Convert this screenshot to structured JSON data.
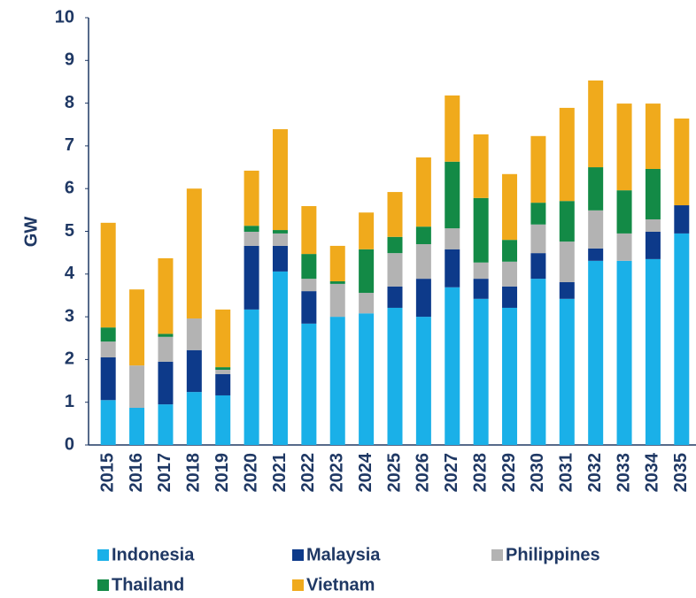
{
  "chart_data": {
    "type": "stacked_bar",
    "y_label": "GW",
    "categories": [
      "2015",
      "2016",
      "2017",
      "2018",
      "2019",
      "2020",
      "2021",
      "2022",
      "2023",
      "2024",
      "2025",
      "2026",
      "2027",
      "2028",
      "2029",
      "2030",
      "2031",
      "2032",
      "2033",
      "2034",
      "2035"
    ],
    "series": [
      {
        "name": "Indonesia",
        "color": "#1ab0e8",
        "values": [
          1.05,
          0.87,
          0.95,
          1.24,
          1.16,
          3.17,
          4.06,
          2.84,
          3.0,
          3.08,
          3.21,
          3.0,
          3.69,
          3.42,
          3.21,
          3.89,
          3.42,
          4.31,
          4.31,
          4.35,
          4.95
        ]
      },
      {
        "name": "Malaysia",
        "color": "#0d3a8a",
        "values": [
          1.0,
          0,
          1.0,
          0.98,
          0.5,
          1.49,
          0.6,
          0.76,
          0,
          0,
          0.5,
          0.89,
          0.89,
          0.47,
          0.5,
          0.6,
          0.39,
          0.29,
          0,
          0.64,
          0.66
        ]
      },
      {
        "name": "Philippines",
        "color": "#b3b3b3",
        "values": [
          0.37,
          0.99,
          0.58,
          0.74,
          0.1,
          0.33,
          0.29,
          0.29,
          0.77,
          0.48,
          0.78,
          0.81,
          0.49,
          0.38,
          0.58,
          0.67,
          0.95,
          0.89,
          0.64,
          0.29,
          0
        ]
      },
      {
        "name": "Thailand",
        "color": "#138a46",
        "values": [
          0.33,
          0,
          0.07,
          0,
          0.06,
          0.14,
          0.08,
          0.58,
          0.06,
          1.02,
          0.38,
          0.41,
          1.56,
          1.51,
          0.51,
          0.51,
          0.95,
          1.01,
          1.01,
          1.18,
          0
        ]
      },
      {
        "name": "Vietnam",
        "color": "#f0aa1c",
        "values": [
          2.45,
          1.78,
          1.77,
          3.04,
          1.35,
          1.29,
          2.36,
          1.12,
          0.83,
          0.86,
          1.05,
          1.62,
          1.55,
          1.49,
          1.54,
          1.56,
          2.18,
          2.03,
          2.03,
          1.53,
          2.03
        ]
      }
    ],
    "ylim": [
      0,
      10
    ],
    "yticks": [
      0,
      1,
      2,
      3,
      4,
      5,
      6,
      7,
      8,
      9,
      10
    ]
  }
}
